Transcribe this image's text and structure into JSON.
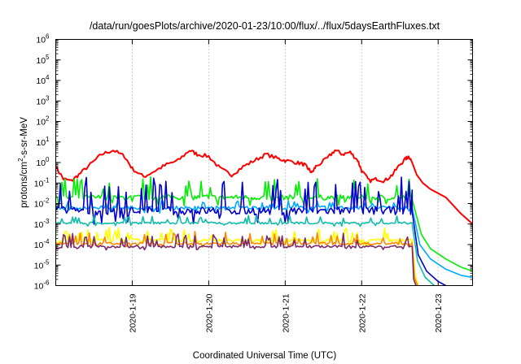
{
  "chart_data": {
    "type": "line",
    "title": "/data/run/goesPlots/archive/2020-01-23/10:00/flux/../flux/5daysEarthFluxes.txt",
    "xlabel": "Coordinated Universal Time (UTC)",
    "ylabel_parts": [
      "protons/cm",
      "2",
      "-s-sr-MeV"
    ],
    "yscale": "log",
    "ylim_exp": [
      -6,
      6
    ],
    "y_ticks": [
      {
        "base": "10",
        "exp": "6"
      },
      {
        "base": "10",
        "exp": "5"
      },
      {
        "base": "10",
        "exp": "4"
      },
      {
        "base": "10",
        "exp": "3"
      },
      {
        "base": "10",
        "exp": "2"
      },
      {
        "base": "10",
        "exp": "1"
      },
      {
        "base": "10",
        "exp": "0"
      },
      {
        "base": "10",
        "exp": "-1"
      },
      {
        "base": "10",
        "exp": "-2"
      },
      {
        "base": "10",
        "exp": "-3"
      },
      {
        "base": "10",
        "exp": "-4"
      },
      {
        "base": "10",
        "exp": "-5"
      },
      {
        "base": "10",
        "exp": "-6"
      }
    ],
    "xlim_days": [
      18.0,
      23.45
    ],
    "x_ticks": [
      {
        "label": "2020-1-19",
        "day": 19
      },
      {
        "label": "2020-1-20",
        "day": 20
      },
      {
        "label": "2020-1-21",
        "day": 21
      },
      {
        "label": "2020-1-22",
        "day": 22
      },
      {
        "label": "2020-1-23",
        "day": 23
      }
    ],
    "grid": true,
    "grid_style": "dotted, x only",
    "series": [
      {
        "color": "#ff0000",
        "kind": "smooth",
        "points": [
          [
            18.0,
            -0.2
          ],
          [
            18.1,
            -0.8
          ],
          [
            18.2,
            -0.9
          ],
          [
            18.3,
            -0.6
          ],
          [
            18.45,
            -0.1
          ],
          [
            18.6,
            0.4
          ],
          [
            18.75,
            0.6
          ],
          [
            18.9,
            0.3
          ],
          [
            19.0,
            -0.3
          ],
          [
            19.15,
            -0.7
          ],
          [
            19.3,
            -0.4
          ],
          [
            19.45,
            -0.1
          ],
          [
            19.6,
            0.1
          ],
          [
            19.75,
            0.6
          ],
          [
            19.85,
            0.4
          ],
          [
            20.0,
            0.3
          ],
          [
            20.15,
            -0.3
          ],
          [
            20.3,
            -0.6
          ],
          [
            20.45,
            -0.2
          ],
          [
            20.6,
            0.1
          ],
          [
            20.75,
            0.4
          ],
          [
            20.9,
            0.2
          ],
          [
            21.0,
            0.1
          ],
          [
            21.15,
            0.0
          ],
          [
            21.25,
            -0.1
          ],
          [
            21.3,
            -0.3
          ],
          [
            21.35,
            -0.5
          ],
          [
            21.4,
            -0.2
          ],
          [
            21.55,
            0.2
          ],
          [
            21.65,
            0.6
          ],
          [
            21.75,
            0.4
          ],
          [
            21.85,
            0.5
          ],
          [
            21.95,
            0.1
          ],
          [
            22.0,
            -0.4
          ],
          [
            22.1,
            -0.9
          ],
          [
            22.2,
            -0.8
          ],
          [
            22.3,
            -0.9
          ],
          [
            22.4,
            -0.6
          ],
          [
            22.5,
            -0.1
          ],
          [
            22.58,
            0.2
          ],
          [
            22.62,
            0.3
          ],
          [
            22.66,
            0.0
          ],
          [
            22.72,
            -0.6
          ],
          [
            22.8,
            -1.0
          ],
          [
            22.9,
            -1.3
          ],
          [
            23.0,
            -1.5
          ],
          [
            23.1,
            -1.7
          ],
          [
            23.2,
            -2.1
          ],
          [
            23.3,
            -2.5
          ],
          [
            23.45,
            -3.0
          ]
        ]
      },
      {
        "color": "#00ee00",
        "kind": "noisy",
        "base": -1.7,
        "spike_up": 0.9,
        "jitter": 0.25,
        "decay": [
          [
            22.66,
            -1.8
          ],
          [
            22.78,
            -3.5
          ],
          [
            22.9,
            -4.2
          ],
          [
            23.1,
            -4.7
          ],
          [
            23.3,
            -5.1
          ],
          [
            23.45,
            -5.3
          ]
        ]
      },
      {
        "color": "#00aaff",
        "kind": "noisy",
        "base": -2.2,
        "spike_up": 0.3,
        "jitter": 0.15,
        "decay": [
          [
            22.66,
            -2.2
          ],
          [
            22.76,
            -4.0
          ],
          [
            22.9,
            -4.7
          ],
          [
            23.1,
            -5.2
          ],
          [
            23.3,
            -5.5
          ],
          [
            23.45,
            -5.6
          ]
        ]
      },
      {
        "color": "#0000cc",
        "kind": "noisy",
        "base": -2.35,
        "spike_up": 1.6,
        "jitter": 0.4,
        "decay": [
          [
            22.66,
            -2.4
          ],
          [
            22.74,
            -4.5
          ],
          [
            22.85,
            -5.3
          ],
          [
            23.0,
            -5.8
          ],
          [
            23.1,
            -6.0
          ]
        ]
      },
      {
        "color": "#11bbaa",
        "kind": "noisy",
        "base": -2.95,
        "spike_up": 0.35,
        "jitter": 0.1,
        "decay": [
          [
            22.66,
            -3.0
          ],
          [
            22.73,
            -4.8
          ],
          [
            22.83,
            -5.6
          ],
          [
            22.95,
            -6.0
          ]
        ]
      },
      {
        "color": "#ffff00",
        "kind": "noisy",
        "base": -3.8,
        "spike_up": 0.6,
        "jitter": 0.15,
        "decay": [
          [
            22.66,
            -3.8
          ],
          [
            22.7,
            -5.5
          ],
          [
            22.74,
            -6.0
          ]
        ]
      },
      {
        "color": "#ff8800",
        "kind": "noisy",
        "base": -3.95,
        "spike_up": 0.55,
        "jitter": 0.12,
        "decay": [
          [
            22.66,
            -3.9
          ],
          [
            22.69,
            -5.6
          ],
          [
            22.73,
            -6.0
          ]
        ]
      },
      {
        "color": "#7a2a6a",
        "kind": "noisy",
        "base": -4.1,
        "spike_up": 0.6,
        "jitter": 0.12,
        "decay": [
          [
            22.66,
            -4.1
          ],
          [
            22.68,
            -5.7
          ],
          [
            22.71,
            -6.0
          ]
        ]
      }
    ]
  }
}
